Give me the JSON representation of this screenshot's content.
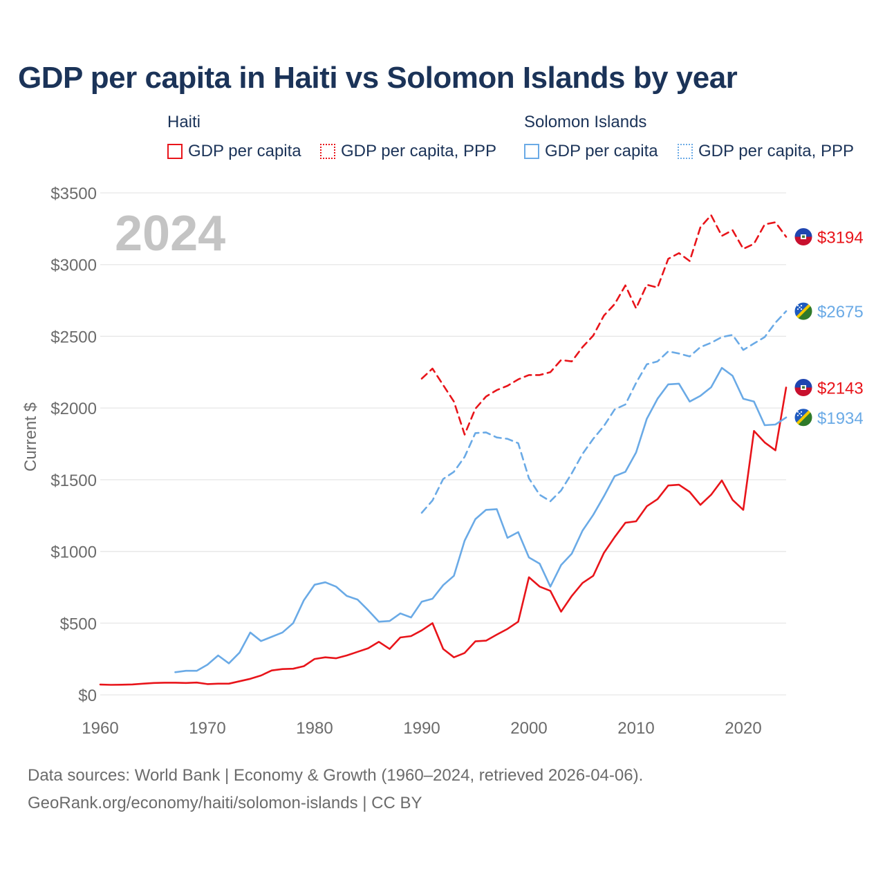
{
  "title": "GDP per capita in Haiti vs Solomon Islands by year",
  "legend": {
    "haiti_group": "Haiti",
    "solomon_group": "Solomon Islands",
    "haiti_gdp": "GDP per capita",
    "haiti_ppp": "GDP per capita, PPP",
    "solomon_gdp": "GDP per capita",
    "solomon_ppp": "GDP per capita, PPP"
  },
  "footer": {
    "line1": "Data sources: World Bank | Economy & Growth (1960–2024, retrieved 2026-04-06).",
    "line2": "GeoRank.org/economy/haiti/solomon-islands | CC BY"
  },
  "colors": {
    "haiti": "#e8141a",
    "solomon": "#6aaae6",
    "grid": "#e6e6e6",
    "axis_text": "#6b6b6b",
    "year_watermark": "#c4c4c4"
  },
  "chart_data": {
    "type": "line",
    "title": "GDP per capita in Haiti vs Solomon Islands by year",
    "year_label": "2024",
    "ylabel": "Current $",
    "xlabel": "",
    "xlim": [
      1960,
      2024
    ],
    "ylim": [
      0,
      3500
    ],
    "x_ticks": [
      1960,
      1970,
      1980,
      1990,
      2000,
      2010,
      2020
    ],
    "y_ticks": [
      0,
      500,
      1000,
      1500,
      2000,
      2500,
      3000,
      3500
    ],
    "y_tick_labels": [
      "$0",
      "$500",
      "$1000",
      "$1500",
      "$2000",
      "$2500",
      "$3000",
      "$3500"
    ],
    "x_tick_labels": [
      "1960",
      "1970",
      "1980",
      "1990",
      "2000",
      "2010",
      "2020"
    ],
    "series": [
      {
        "name": "Haiti GDP per capita",
        "country": "Haiti",
        "style": "solid",
        "color_key": "haiti",
        "end_label": "$2143",
        "x": [
          1960,
          1961,
          1962,
          1963,
          1964,
          1965,
          1966,
          1967,
          1968,
          1969,
          1970,
          1971,
          1972,
          1973,
          1974,
          1975,
          1976,
          1977,
          1978,
          1979,
          1980,
          1981,
          1982,
          1983,
          1984,
          1985,
          1986,
          1987,
          1988,
          1989,
          1990,
          1991,
          1992,
          1993,
          1994,
          1995,
          1996,
          1997,
          1998,
          1999,
          2000,
          2001,
          2002,
          2003,
          2004,
          2005,
          2006,
          2007,
          2008,
          2009,
          2010,
          2011,
          2012,
          2013,
          2014,
          2015,
          2016,
          2017,
          2018,
          2019,
          2020,
          2021,
          2022,
          2023,
          2024
        ],
        "values": [
          72,
          70,
          71,
          73,
          78,
          83,
          85,
          85,
          83,
          86,
          75,
          78,
          78,
          95,
          112,
          135,
          170,
          180,
          182,
          200,
          250,
          262,
          255,
          275,
          300,
          325,
          370,
          320,
          400,
          410,
          450,
          500,
          320,
          262,
          292,
          373,
          378,
          420,
          460,
          510,
          820,
          755,
          725,
          580,
          690,
          780,
          830,
          990,
          1100,
          1200,
          1210,
          1315,
          1365,
          1460,
          1465,
          1415,
          1325,
          1395,
          1495,
          1360,
          1290,
          1840,
          1760,
          1705,
          2143
        ]
      },
      {
        "name": "Haiti GDP per capita, PPP",
        "country": "Haiti",
        "style": "dashed",
        "color_key": "haiti",
        "end_label": "$3194",
        "x": [
          1990,
          1991,
          1992,
          1993,
          1994,
          1995,
          1996,
          1997,
          1998,
          1999,
          2000,
          2001,
          2002,
          2003,
          2004,
          2005,
          2006,
          2007,
          2008,
          2009,
          2010,
          2011,
          2012,
          2013,
          2014,
          2015,
          2016,
          2017,
          2018,
          2019,
          2020,
          2021,
          2022,
          2023,
          2024
        ],
        "values": [
          2205,
          2275,
          2160,
          2045,
          1815,
          1995,
          2080,
          2125,
          2155,
          2200,
          2230,
          2230,
          2250,
          2335,
          2325,
          2425,
          2505,
          2645,
          2725,
          2855,
          2695,
          2860,
          2840,
          3040,
          3080,
          3025,
          3260,
          3345,
          3200,
          3240,
          3110,
          3145,
          3280,
          3295,
          3194
        ]
      },
      {
        "name": "Solomon Islands GDP per capita",
        "country": "Solomon Islands",
        "style": "solid",
        "color_key": "solomon",
        "end_label": "$1934",
        "x": [
          1967,
          1968,
          1969,
          1970,
          1971,
          1972,
          1973,
          1974,
          1975,
          1976,
          1977,
          1978,
          1979,
          1980,
          1981,
          1982,
          1983,
          1984,
          1985,
          1986,
          1987,
          1988,
          1989,
          1990,
          1991,
          1992,
          1993,
          1994,
          1995,
          1996,
          1997,
          1998,
          1999,
          2000,
          2001,
          2002,
          2003,
          2004,
          2005,
          2006,
          2007,
          2008,
          2009,
          2010,
          2011,
          2012,
          2013,
          2014,
          2015,
          2016,
          2017,
          2018,
          2019,
          2020,
          2021,
          2022,
          2023,
          2024
        ],
        "values": [
          158,
          168,
          168,
          210,
          275,
          220,
          295,
          435,
          375,
          405,
          435,
          500,
          660,
          768,
          785,
          755,
          690,
          665,
          590,
          510,
          515,
          568,
          540,
          650,
          670,
          765,
          830,
          1075,
          1225,
          1290,
          1295,
          1095,
          1135,
          958,
          915,
          755,
          905,
          985,
          1145,
          1255,
          1385,
          1525,
          1555,
          1690,
          1925,
          2065,
          2165,
          2170,
          2045,
          2085,
          2145,
          2280,
          2225,
          2065,
          2045,
          1880,
          1885,
          1934
        ]
      },
      {
        "name": "Solomon Islands GDP per capita, PPP",
        "country": "Solomon Islands",
        "style": "dashed",
        "color_key": "solomon",
        "end_label": "$2675",
        "x": [
          1990,
          1991,
          1992,
          1993,
          1994,
          1995,
          1996,
          1997,
          1998,
          1999,
          2000,
          2001,
          2002,
          2003,
          2004,
          2005,
          2006,
          2007,
          2008,
          2009,
          2010,
          2011,
          2012,
          2013,
          2014,
          2015,
          2016,
          2017,
          2018,
          2019,
          2020,
          2021,
          2022,
          2023,
          2024
        ],
        "values": [
          1270,
          1355,
          1505,
          1555,
          1660,
          1825,
          1830,
          1795,
          1785,
          1755,
          1510,
          1395,
          1350,
          1425,
          1545,
          1680,
          1785,
          1875,
          1990,
          2025,
          2175,
          2305,
          2325,
          2395,
          2380,
          2360,
          2425,
          2455,
          2495,
          2510,
          2405,
          2450,
          2495,
          2595,
          2675
        ]
      }
    ]
  }
}
